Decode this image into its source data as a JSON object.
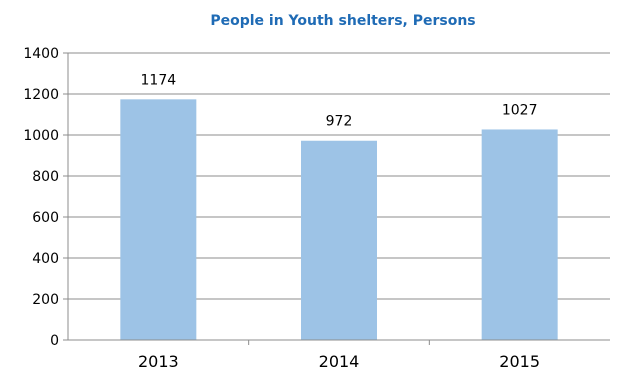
{
  "chart_data": {
    "type": "bar",
    "title": "People in Youth shelters, Persons",
    "categories": [
      "2013",
      "2014",
      "2015"
    ],
    "values": [
      1174,
      972,
      1027
    ],
    "data_labels": [
      "1174",
      "972",
      "1027"
    ],
    "ylim": [
      0,
      1400
    ],
    "yticks": [
      "0",
      "200",
      "400",
      "600",
      "800",
      "1000",
      "1200",
      "1400"
    ],
    "grid": true,
    "legend": "none",
    "colors": {
      "bar": "#9dc3e6",
      "title": "#1f6bb5",
      "grid": "#8c8c8c"
    }
  }
}
